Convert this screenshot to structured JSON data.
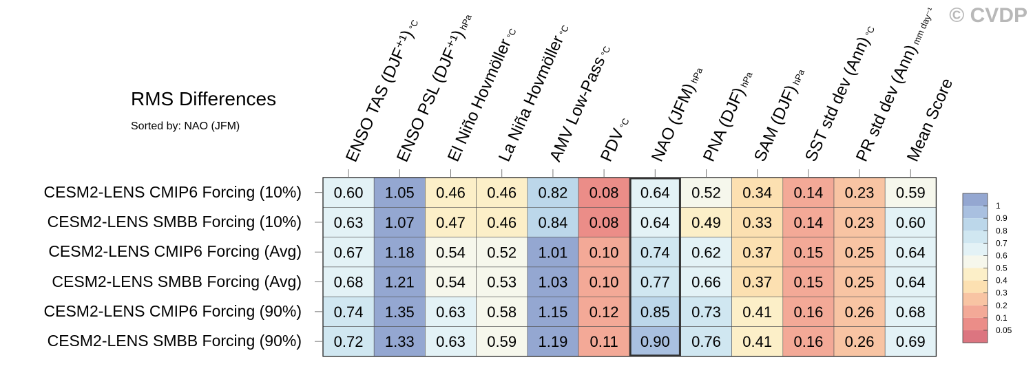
{
  "watermark": "© CVDP",
  "chart_data": {
    "type": "heatmap",
    "title": "RMS Differences",
    "subtitle": "Sorted by: NAO (JFM)",
    "columns": [
      {
        "name": "ENSO TAS (DJF⁺¹)",
        "unit": "°C"
      },
      {
        "name": "ENSO PSL (DJF⁺¹)",
        "unit": "hPa"
      },
      {
        "name": "El Niño Hovmöller",
        "unit": "°C"
      },
      {
        "name": "La Niña Hovmöller",
        "unit": "°C"
      },
      {
        "name": "AMV Low-Pass",
        "unit": "°C"
      },
      {
        "name": "PDV",
        "unit": "°C"
      },
      {
        "name": "NAO (JFM)",
        "unit": "hPa"
      },
      {
        "name": "PNA (DJF)",
        "unit": "hPa"
      },
      {
        "name": "SAM (DJF)",
        "unit": "hPa"
      },
      {
        "name": "SST std dev (Ann)",
        "unit": "°C"
      },
      {
        "name": "PR std dev (Ann)",
        "unit": "mm day⁻¹"
      },
      {
        "name": "Mean Score",
        "unit": ""
      }
    ],
    "rows": [
      "CESM2-LENS CMIP6 Forcing (10%)",
      "CESM2-LENS SMBB Forcing (10%)",
      "CESM2-LENS CMIP6 Forcing (Avg)",
      "CESM2-LENS SMBB Forcing (Avg)",
      "CESM2-LENS CMIP6 Forcing (90%)",
      "CESM2-LENS SMBB Forcing (90%)"
    ],
    "values": [
      [
        "0.60",
        "1.05",
        "0.46",
        "0.46",
        "0.82",
        "0.08",
        "0.64",
        "0.52",
        "0.34",
        "0.14",
        "0.23",
        "0.59"
      ],
      [
        "0.63",
        "1.07",
        "0.47",
        "0.46",
        "0.84",
        "0.08",
        "0.64",
        "0.49",
        "0.33",
        "0.14",
        "0.23",
        "0.60"
      ],
      [
        "0.67",
        "1.18",
        "0.54",
        "0.52",
        "1.01",
        "0.10",
        "0.74",
        "0.62",
        "0.37",
        "0.15",
        "0.25",
        "0.64"
      ],
      [
        "0.68",
        "1.21",
        "0.54",
        "0.53",
        "1.03",
        "0.10",
        "0.77",
        "0.66",
        "0.37",
        "0.15",
        "0.25",
        "0.64"
      ],
      [
        "0.74",
        "1.35",
        "0.63",
        "0.58",
        "1.15",
        "0.12",
        "0.85",
        "0.73",
        "0.41",
        "0.16",
        "0.26",
        "0.68"
      ],
      [
        "0.72",
        "1.33",
        "0.63",
        "0.59",
        "1.19",
        "0.11",
        "0.90",
        "0.76",
        "0.41",
        "0.16",
        "0.26",
        "0.69"
      ]
    ],
    "highlight_column": "NAO (JFM)",
    "colorbar": {
      "labels": [
        "1",
        "0.9",
        "0.8",
        "0.7",
        "0.6",
        "0.5",
        "0.4",
        "0.3",
        "0.2",
        "0.1",
        "0.05"
      ],
      "bins_top_to_bottom": [
        "#94a7d1",
        "#a9c0e0",
        "#bcd7ea",
        "#d0e7f1",
        "#e3f2f6",
        "#f6f7ec",
        "#fcefc8",
        "#fce0b1",
        "#f8c4a3",
        "#f3a997",
        "#eb8d88",
        "#dc7580"
      ]
    }
  }
}
